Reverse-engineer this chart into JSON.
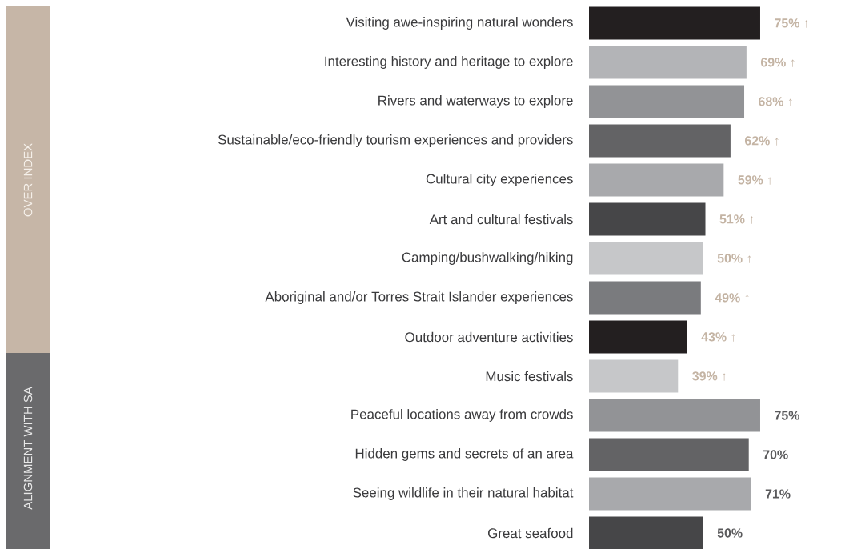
{
  "chart_data": {
    "type": "bar",
    "orientation": "horizontal",
    "categories": [
      "Visiting awe-inspiring natural wonders",
      "Interesting history and heritage to explore",
      "Rivers and waterways to explore",
      "Sustainable/eco-friendly tourism experiences and providers",
      "Cultural city experiences",
      "Art and cultural festivals",
      "Camping/bushwalking/hiking",
      "Aboriginal and/or Torres Strait Islander experiences",
      "Outdoor adventure activities",
      "Music festivals",
      "Peaceful locations away from crowds",
      "Hidden gems and secrets of an area",
      "Seeing wildlife in their natural habitat",
      "Great seafood"
    ],
    "values": [
      75,
      69,
      68,
      62,
      59,
      51,
      50,
      49,
      43,
      39,
      75,
      70,
      71,
      50
    ],
    "value_labels": [
      "75% ↑",
      "69% ↑",
      "68% ↑",
      "62% ↑",
      "59% ↑",
      "51% ↑",
      "50% ↑",
      "49% ↑",
      "43% ↑",
      "39% ↑",
      "75%",
      "70%",
      "71%",
      "50%"
    ],
    "colors": [
      "#231f20",
      "#b3b4b7",
      "#929396",
      "#636365",
      "#a8a9ac",
      "#464648",
      "#c6c7c9",
      "#7a7b7e",
      "#231f20",
      "#c6c7c9",
      "#929396",
      "#636365",
      "#a8a9ac",
      "#464648"
    ],
    "annotations": [
      "OVER INDEX",
      "ALIGNMENT WITH SA"
    ]
  }
}
